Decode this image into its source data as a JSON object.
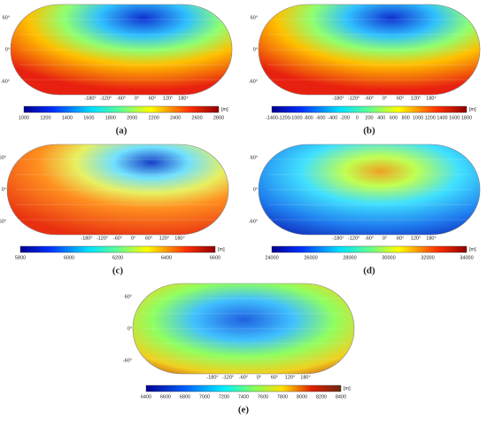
{
  "lon_labels": [
    "-180°",
    "-120°",
    "-60°",
    "0°",
    "60°",
    "120°",
    "180°"
  ],
  "lat_labels": [
    "60°",
    "0°",
    "-60°"
  ],
  "panels": [
    {
      "label": "(a)",
      "unit": "[m]",
      "colorbar_ticks": [
        "1000",
        "1200",
        "1400",
        "1600",
        "1800",
        "2000",
        "2200",
        "2400",
        "2600",
        "2800"
      ]
    },
    {
      "label": "(b)",
      "unit": "[m]",
      "colorbar_ticks": [
        "-1400",
        "-1200",
        "-1000",
        "-800",
        "-600",
        "-400",
        "-200",
        "0",
        "200",
        "400",
        "600",
        "800",
        "1000",
        "1200",
        "1400",
        "1600",
        "1800"
      ]
    },
    {
      "label": "(c)",
      "unit": "[m]",
      "colorbar_ticks": [
        "5800",
        "6000",
        "6200",
        "6400",
        "6600"
      ]
    },
    {
      "label": "(d)",
      "unit": "[m]",
      "colorbar_ticks": [
        "24000",
        "26000",
        "28000",
        "30000",
        "32000",
        "34000"
      ]
    },
    {
      "label": "(e)",
      "unit": "[m]",
      "colorbar_ticks": [
        "6400",
        "6600",
        "6800",
        "7000",
        "7200",
        "7400",
        "7600",
        "7800",
        "8000",
        "8200",
        "8400"
      ]
    }
  ]
}
